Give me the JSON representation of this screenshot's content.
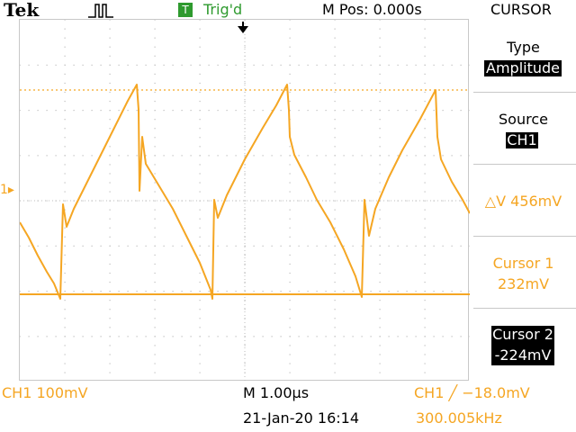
{
  "header": {
    "brand": "Tek",
    "trigger_badge": "T",
    "trigger_status": "Trig'd",
    "horizontal_position": "M Pos: 0.000s",
    "menu_title": "CURSOR"
  },
  "side_menu": {
    "type_label": "Type",
    "type_value": "Amplitude",
    "source_label": "Source",
    "source_value": "CH1",
    "delta_readout": "△V 456mV",
    "cursor1_label": "Cursor 1",
    "cursor1_value": "232mV",
    "cursor2_label": "Cursor 2",
    "cursor2_value": "-224mV"
  },
  "screen": {
    "ch1_marker": "1▸"
  },
  "footer": {
    "ch1_scale": "CH1  100mV",
    "timebase": "M 1.00µs",
    "trigger_setting": "CH1 ╱ −18.0mV",
    "datetime": "21-Jan-20 16:14",
    "frequency": "300.005kHz"
  },
  "waveform": {
    "channel": "CH1",
    "volts_per_div": 0.1,
    "time_per_div_us": 1.0,
    "frequency_khz": 300.005,
    "shape": "sawtooth",
    "peak_mv": 232,
    "trough_mv": -224,
    "color": "#f5a623"
  },
  "colors": {
    "trace": "#f5a623",
    "grid": "#c8c8c8",
    "trigger_badge": "#2e9a2e",
    "highlight_bg": "#000000"
  }
}
